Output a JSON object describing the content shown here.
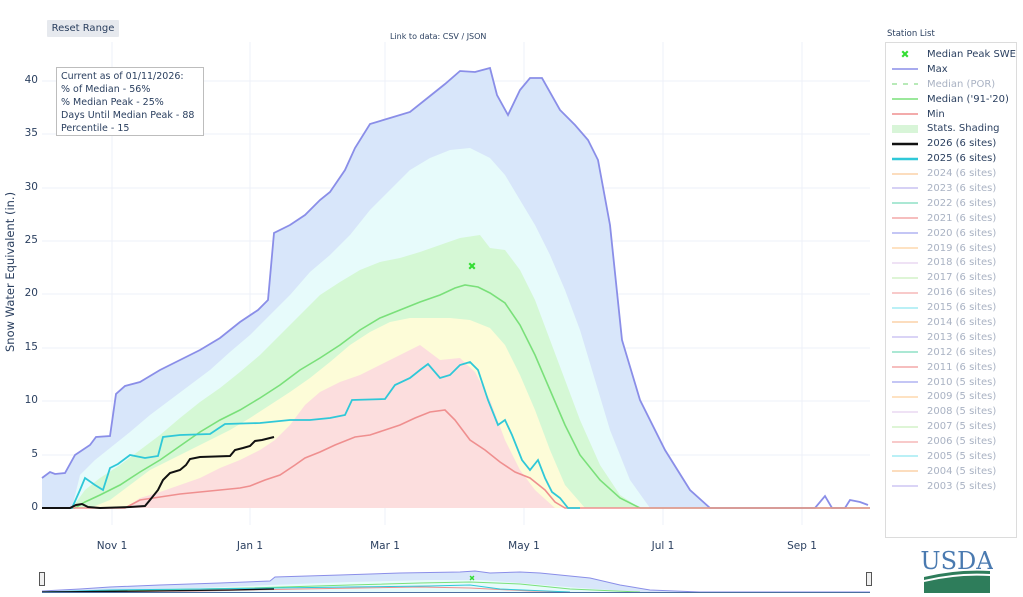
{
  "toolbar": {
    "reset_label": "Reset Range"
  },
  "data_link": {
    "prefix": "Link to data: ",
    "csv": "CSV",
    "sep": " / ",
    "json": "JSON"
  },
  "stats_box": {
    "line1": "Current as of 01/11/2026:",
    "line2": "% of Median - 56%",
    "line3": "% Median Peak - 25%",
    "line4": "Days Until Median Peak - 88",
    "line5": "Percentile - 15"
  },
  "legend": {
    "title": "Station List",
    "items": [
      {
        "label": "Median Peak SWE",
        "color": "#33dd33",
        "type": "marker",
        "active": true
      },
      {
        "label": "Max",
        "color": "#8a8ee8",
        "type": "line",
        "active": true
      },
      {
        "label": "Median (POR)",
        "color": "#b8eab8",
        "type": "dash",
        "active": false
      },
      {
        "label": "Median ('91-'20)",
        "color": "#7ae07a",
        "type": "line",
        "active": true
      },
      {
        "label": "Min",
        "color": "#ef8f8f",
        "type": "line",
        "active": true
      },
      {
        "label": "Stats. Shading",
        "color": "#d8f5d8",
        "type": "fill",
        "active": true
      },
      {
        "label": "2026 (6 sites)",
        "color": "#111111",
        "type": "thick",
        "active": true
      },
      {
        "label": "2025 (6 sites)",
        "color": "#2fc8d8",
        "type": "thick",
        "active": true
      },
      {
        "label": "2024 (6 sites)",
        "color": "#fcd2a8",
        "type": "line",
        "active": false
      },
      {
        "label": "2023 (6 sites)",
        "color": "#c8c2f2",
        "type": "line",
        "active": false
      },
      {
        "label": "2022 (6 sites)",
        "color": "#8fe0c6",
        "type": "line",
        "active": false
      },
      {
        "label": "2021 (6 sites)",
        "color": "#f4a8a8",
        "type": "line",
        "active": false
      },
      {
        "label": "2020 (6 sites)",
        "color": "#b0b4f2",
        "type": "line",
        "active": false
      },
      {
        "label": "2019 (6 sites)",
        "color": "#fdd8ad",
        "type": "line",
        "active": false
      },
      {
        "label": "2018 (6 sites)",
        "color": "#ead8f2",
        "type": "line",
        "active": false
      },
      {
        "label": "2017 (6 sites)",
        "color": "#d3f2c9",
        "type": "line",
        "active": false
      },
      {
        "label": "2016 (6 sites)",
        "color": "#f6b8b8",
        "type": "line",
        "active": false
      },
      {
        "label": "2015 (6 sites)",
        "color": "#a4ecf4",
        "type": "line",
        "active": false
      },
      {
        "label": "2014 (6 sites)",
        "color": "#fcd2a8",
        "type": "line",
        "active": false
      },
      {
        "label": "2013 (6 sites)",
        "color": "#cdc6f4",
        "type": "line",
        "active": false
      },
      {
        "label": "2012 (6 sites)",
        "color": "#8fe0c6",
        "type": "line",
        "active": false
      },
      {
        "label": "2011 (6 sites)",
        "color": "#f4a8a8",
        "type": "line",
        "active": false
      },
      {
        "label": "2010 (5 sites)",
        "color": "#b0b4f2",
        "type": "line",
        "active": false
      },
      {
        "label": "2009 (5 sites)",
        "color": "#fdd8ad",
        "type": "line",
        "active": false
      },
      {
        "label": "2008 (5 sites)",
        "color": "#ead8f2",
        "type": "line",
        "active": false
      },
      {
        "label": "2007 (5 sites)",
        "color": "#d3f2c9",
        "type": "line",
        "active": false
      },
      {
        "label": "2006 (5 sites)",
        "color": "#f6b8b8",
        "type": "line",
        "active": false
      },
      {
        "label": "2005 (5 sites)",
        "color": "#a4ecf4",
        "type": "line",
        "active": false
      },
      {
        "label": "2004 (5 sites)",
        "color": "#fcd2a8",
        "type": "line",
        "active": false
      },
      {
        "label": "2003 (5 sites)",
        "color": "#cdc6f4",
        "type": "line",
        "active": false
      }
    ]
  },
  "logo": {
    "text": "USDA"
  },
  "chart_data": {
    "type": "area",
    "title": "",
    "xlabel": "",
    "ylabel": "Snow Water Equivalent (in.)",
    "ylim": [
      0,
      43
    ],
    "grid": true,
    "legend_position": "right",
    "x_ticks": [
      "Nov 1",
      "Jan 1",
      "Mar 1",
      "May 1",
      "Jul 1",
      "Sep 1"
    ],
    "y_ticks": [
      0,
      5,
      10,
      15,
      20,
      25,
      30,
      35,
      40
    ],
    "x": [
      "Oct 1",
      "Oct 15",
      "Nov 1",
      "Nov 15",
      "Dec 1",
      "Dec 15",
      "Jan 1",
      "Jan 15",
      "Feb 1",
      "Feb 15",
      "Mar 1",
      "Mar 15",
      "Apr 1",
      "Apr 15",
      "May 1",
      "May 15",
      "Jun 1",
      "Jun 15",
      "Jul 1",
      "Jul 15",
      "Aug 1",
      "Aug 15",
      "Sep 1",
      "Sep 15",
      "Sep 30"
    ],
    "series": [
      {
        "name": "Max",
        "values": [
          2.8,
          5.8,
          10.5,
          11.5,
          13.0,
          15.0,
          17.0,
          25.5,
          27.5,
          31.5,
          36.0,
          37.5,
          40.5,
          37.0,
          40.0,
          34.5,
          20.0,
          7.0,
          3.5,
          0.2,
          0,
          0,
          0,
          0.3,
          0.5
        ]
      },
      {
        "name": "Median ('91-'20)",
        "values": [
          0,
          0.2,
          1.5,
          3.5,
          5.5,
          7.5,
          9.8,
          12.0,
          14.0,
          16.0,
          18.0,
          19.5,
          20.5,
          20.0,
          16.5,
          9.0,
          3.0,
          0.3,
          0,
          0,
          0,
          0,
          0,
          0,
          0
        ]
      },
      {
        "name": "Min",
        "values": [
          0,
          0,
          0,
          0.5,
          1.0,
          1.3,
          1.8,
          4.5,
          5.5,
          6.5,
          6.6,
          7.5,
          8.8,
          5.5,
          2.5,
          0.2,
          0,
          0,
          0,
          0,
          0,
          0,
          0,
          0,
          0
        ]
      },
      {
        "name": "2025 (6 sites)",
        "values": [
          0,
          2.8,
          4.9,
          6.8,
          6.8,
          7.5,
          8.0,
          8.5,
          9.5,
          10.3,
          10.3,
          12.5,
          13.5,
          8.0,
          3.5,
          0.3,
          0,
          0,
          0,
          0,
          0,
          0,
          0,
          0,
          0
        ]
      },
      {
        "name": "2026 (6 sites)",
        "values": [
          0,
          0.3,
          0.2,
          0.4,
          2.5,
          4.0,
          5.0,
          5.6
        ]
      },
      {
        "name": "Median Peak SWE",
        "x": [
          "Apr 10"
        ],
        "values": [
          22.5
        ]
      }
    ],
    "stats_shading_bands": [
      "10-30%",
      "30-50%",
      "50-70%",
      "70-90%",
      "90-Max"
    ]
  }
}
